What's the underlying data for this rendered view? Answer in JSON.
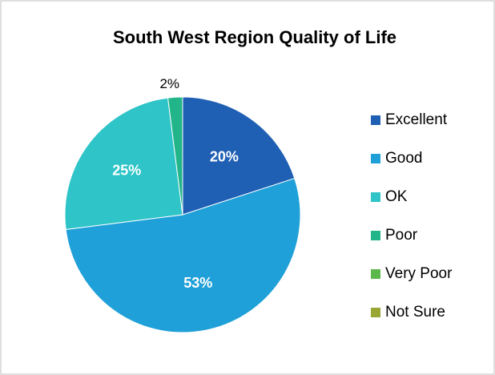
{
  "chart_data": {
    "type": "pie",
    "title": "South West Region Quality of Life",
    "categories": [
      "Excellent",
      "Good",
      "OK",
      "Poor",
      "Very Poor",
      "Not Sure"
    ],
    "values": [
      20,
      53,
      25,
      2,
      0,
      0
    ],
    "value_labels": [
      "20%",
      "53%",
      "25%",
      "2%",
      null,
      null
    ],
    "colors": [
      "#1f5fb4",
      "#1fa0d8",
      "#2ec4c8",
      "#22b58a",
      "#5cb84a",
      "#9aa632"
    ],
    "legend": "right"
  }
}
